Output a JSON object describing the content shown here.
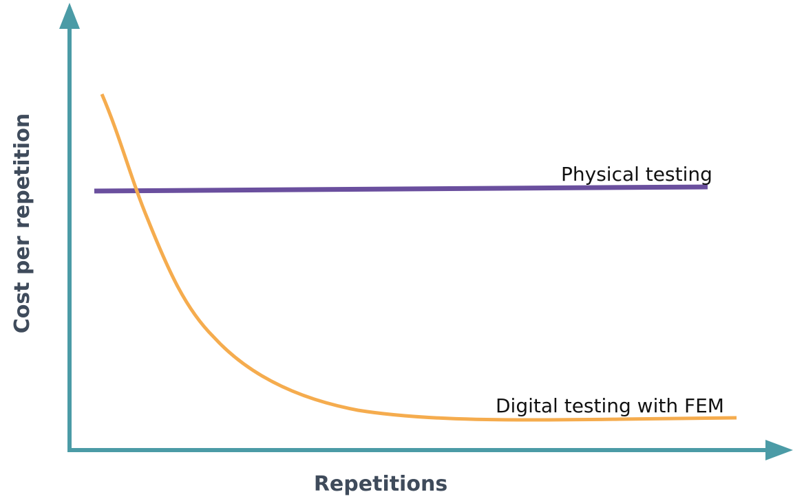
{
  "chart_data": {
    "type": "line",
    "xlabel": "Repetitions",
    "ylabel": "Cost per repetition",
    "axis_color": "#4b9ba6",
    "series": [
      {
        "name": "Physical testing",
        "color": "#6a4f9e"
      },
      {
        "name": "Digital testing with FEM",
        "color": "#f5ac4e"
      }
    ]
  }
}
